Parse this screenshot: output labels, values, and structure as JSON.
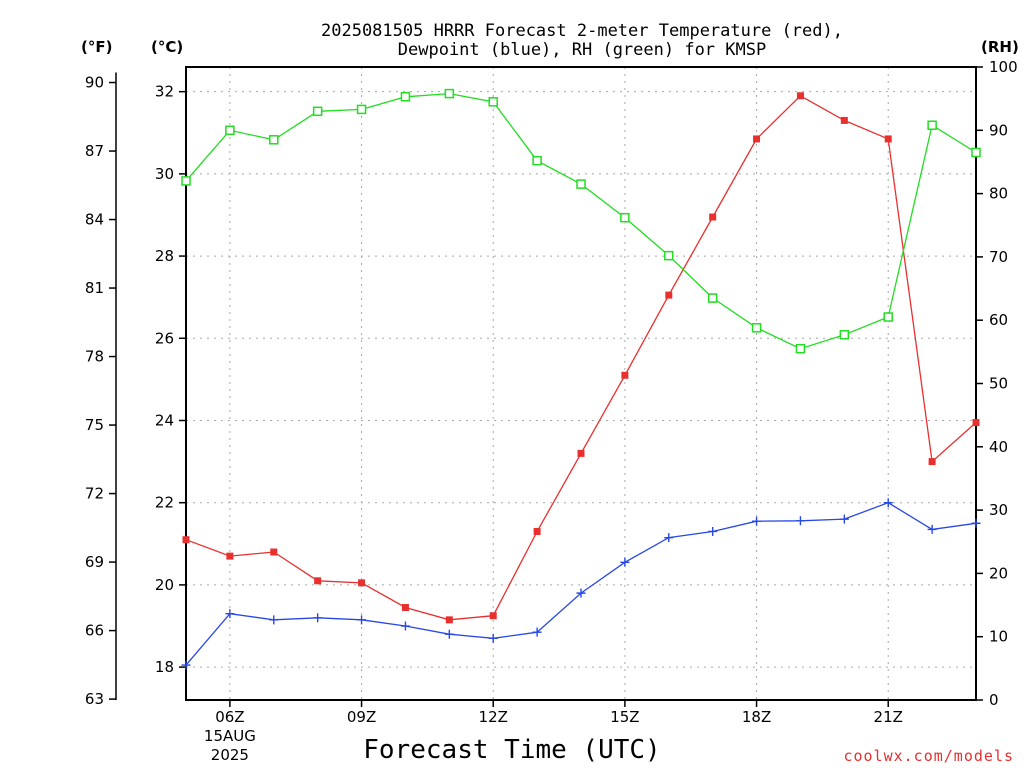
{
  "chart_data": {
    "type": "line",
    "title": [
      "2025081505 HRRR Forecast 2-meter Temperature (red),",
      "Dewpoint (blue), RH (green) for KMSP"
    ],
    "xlabel": "Forecast Time (UTC)",
    "credit": "coolwx.com/models",
    "units": {
      "fahrenheit": "(°F)",
      "celsius": "(°C)",
      "rh": "(RH)"
    },
    "x_hours": [
      5,
      6,
      7,
      8,
      9,
      10,
      11,
      12,
      13,
      14,
      15,
      16,
      17,
      18,
      19,
      20,
      21,
      22,
      23
    ],
    "xlim": [
      5,
      23
    ],
    "x_ticks": [
      {
        "hour": 6,
        "label": "06Z",
        "sub": [
          "15AUG",
          "2025"
        ]
      },
      {
        "hour": 9,
        "label": "09Z"
      },
      {
        "hour": 12,
        "label": "12Z"
      },
      {
        "hour": 15,
        "label": "15Z"
      },
      {
        "hour": 18,
        "label": "18Z"
      },
      {
        "hour": 21,
        "label": "21Z"
      }
    ],
    "y_celsius": {
      "ylim": [
        17.2,
        32.6
      ],
      "ticks": [
        18,
        20,
        22,
        24,
        26,
        28,
        30,
        32
      ]
    },
    "y_fahrenheit": {
      "ticks": [
        63,
        66,
        69,
        72,
        75,
        78,
        81,
        84,
        87,
        90
      ]
    },
    "y_rh": {
      "ylim": [
        0,
        100
      ],
      "ticks": [
        0,
        10,
        20,
        30,
        40,
        50,
        60,
        70,
        80,
        90,
        100
      ]
    },
    "series": [
      {
        "name": "Temperature",
        "axis": "celsius",
        "color": "#e8302f",
        "marker": "filled-square",
        "values": [
          21.1,
          20.7,
          20.8,
          20.1,
          20.05,
          19.45,
          19.15,
          19.25,
          21.3,
          23.2,
          25.1,
          27.05,
          28.95,
          30.85,
          31.9,
          31.3,
          30.85,
          23.0,
          23.95
        ]
      },
      {
        "name": "Dewpoint",
        "axis": "celsius",
        "color": "#2848e6",
        "marker": "plus",
        "values": [
          18.05,
          19.3,
          19.15,
          19.2,
          19.15,
          19.0,
          18.8,
          18.7,
          18.85,
          19.8,
          20.55,
          21.15,
          21.3,
          21.55,
          21.56,
          21.6,
          22.0,
          21.35,
          21.5
        ]
      },
      {
        "name": "RH",
        "axis": "rh",
        "color": "#22dd22",
        "marker": "open-square",
        "values": [
          82,
          90,
          88.5,
          93,
          93.3,
          95.3,
          95.8,
          94.5,
          85.2,
          81.5,
          76.2,
          70.2,
          63.5,
          58.8,
          55.5,
          57.7,
          60.5,
          90.8,
          86.5
        ]
      }
    ]
  }
}
